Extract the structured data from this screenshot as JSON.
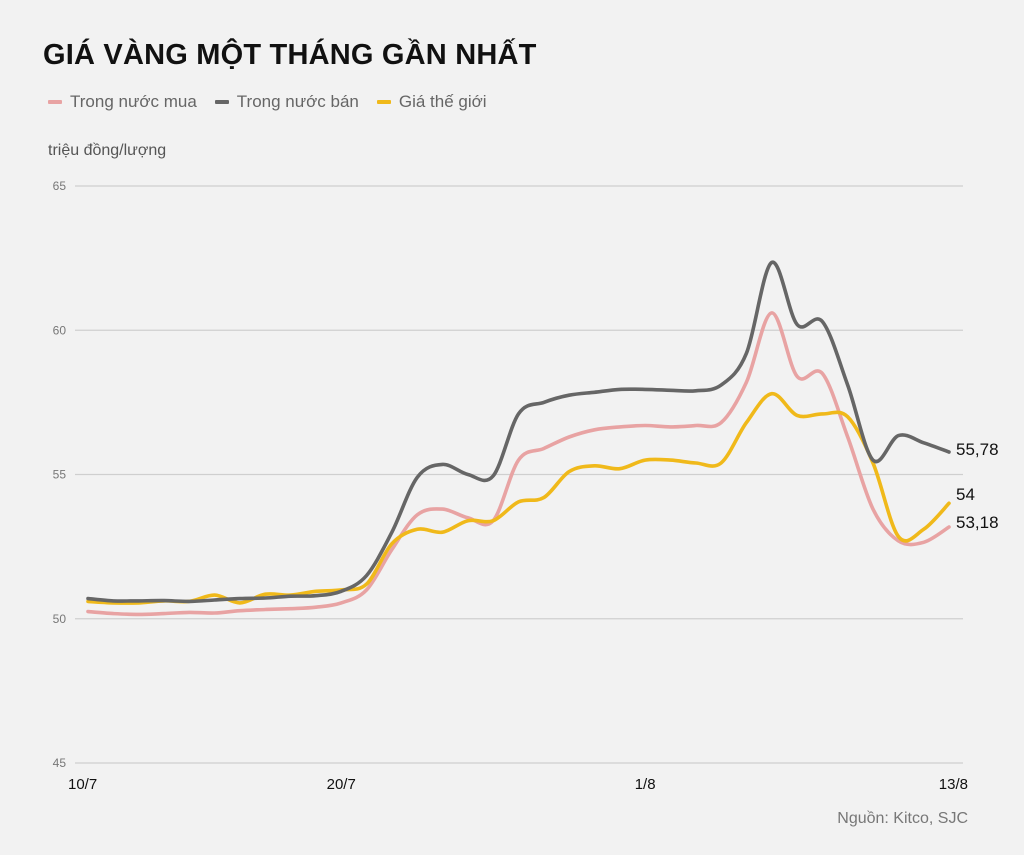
{
  "header": {
    "title": "GIÁ VÀNG MỘT THÁNG GẦN NHẤT",
    "unit": "triệu đồng/lượng"
  },
  "legend": [
    {
      "label": "Trong nước mua",
      "color": "#e8a3a3"
    },
    {
      "label": "Trong nước bán",
      "color": "#666666"
    },
    {
      "label": "Giá thế giới",
      "color": "#f0b91a"
    }
  ],
  "footer": {
    "source": "Nguồn: Kitco, SJC"
  },
  "chart_data": {
    "type": "line",
    "title": "GIÁ VÀNG MỘT THÁNG GẦN NHẤT",
    "xlabel": "",
    "ylabel": "triệu đồng/lượng",
    "ylim": [
      45,
      65
    ],
    "yticks": [
      45,
      50,
      55,
      60,
      65
    ],
    "grid": true,
    "legend_position": "top-left",
    "x_tick_labels": [
      {
        "label": "10/7",
        "index": 0
      },
      {
        "label": "20/7",
        "index": 10
      },
      {
        "label": "1/8",
        "index": 22
      },
      {
        "label": "13/8",
        "index": 34
      }
    ],
    "x": [
      "10/7",
      "11/7",
      "12/7",
      "13/7",
      "14/7",
      "15/7",
      "16/7",
      "17/7",
      "18/7",
      "19/7",
      "20/7",
      "21/7",
      "22/7",
      "23/7",
      "24/7",
      "25/7",
      "26/7",
      "27/7",
      "28/7",
      "29/7",
      "30/7",
      "31/7",
      "1/8",
      "2/8",
      "3/8",
      "4/8",
      "5/8",
      "6/8",
      "7/8",
      "8/8",
      "9/8",
      "10/8",
      "11/8",
      "12/8",
      "13/8"
    ],
    "series": [
      {
        "name": "Trong nước mua",
        "color": "#e8a3a3",
        "end_label": "53,18",
        "values": [
          50.25,
          50.18,
          50.15,
          50.18,
          50.22,
          50.2,
          50.28,
          50.32,
          50.35,
          50.4,
          50.55,
          51.0,
          52.4,
          53.6,
          53.8,
          53.5,
          53.4,
          55.5,
          55.9,
          56.3,
          56.55,
          56.65,
          56.7,
          56.65,
          56.7,
          56.8,
          58.2,
          60.6,
          58.4,
          58.5,
          56.3,
          53.8,
          52.7,
          52.65,
          53.18
        ]
      },
      {
        "name": "Trong nước bán",
        "color": "#666666",
        "end_label": "55,78",
        "values": [
          50.7,
          50.62,
          50.62,
          50.63,
          50.6,
          50.65,
          50.7,
          50.72,
          50.78,
          50.8,
          50.95,
          51.5,
          53.0,
          54.9,
          55.35,
          55.0,
          54.95,
          57.1,
          57.5,
          57.75,
          57.85,
          57.95,
          57.95,
          57.92,
          57.9,
          58.1,
          59.2,
          62.35,
          60.2,
          60.3,
          58.1,
          55.5,
          56.35,
          56.1,
          55.78
        ]
      },
      {
        "name": "Giá thế giới",
        "color": "#f0b91a",
        "end_label": "54",
        "values": [
          50.6,
          50.55,
          50.55,
          50.62,
          50.6,
          50.82,
          50.55,
          50.85,
          50.82,
          50.95,
          51.0,
          51.2,
          52.6,
          53.1,
          53.0,
          53.4,
          53.4,
          54.05,
          54.2,
          55.1,
          55.3,
          55.2,
          55.5,
          55.5,
          55.4,
          55.4,
          56.8,
          57.8,
          57.05,
          57.1,
          57.0,
          55.4,
          52.85,
          53.1,
          54.0
        ]
      }
    ]
  }
}
